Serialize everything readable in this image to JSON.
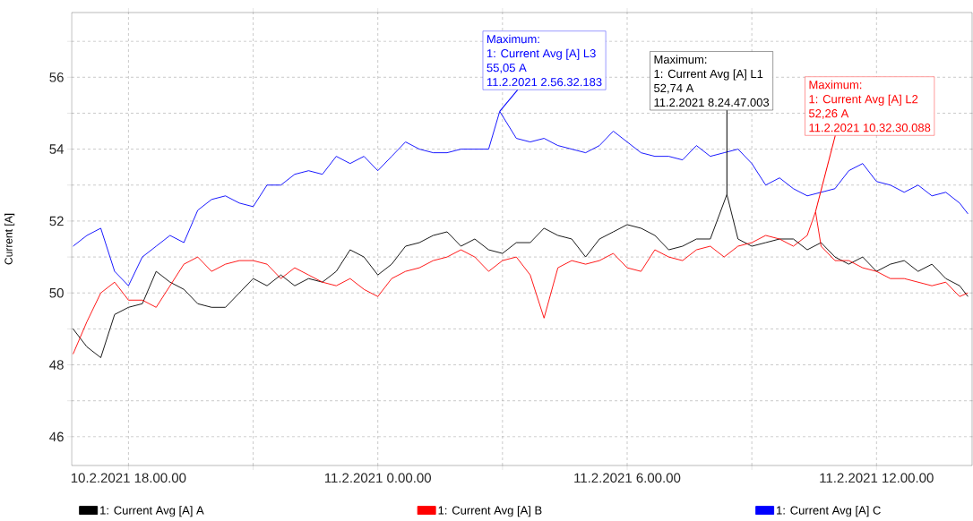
{
  "chart_data": {
    "type": "line",
    "ylabel": "Current [A]",
    "xlim": [
      "2021-02-10T16:38",
      "2021-02-11T14:18"
    ],
    "ylim": [
      45.2,
      57.8
    ],
    "xticks": [
      {
        "value": "2021-02-10T18:00",
        "label": "10.2.2021 18.00.00"
      },
      {
        "value": "2021-02-10T21:00",
        "label": null
      },
      {
        "value": "2021-02-11T00:00",
        "label": "11.2.2021 0.00.00"
      },
      {
        "value": "2021-02-11T03:00",
        "label": null
      },
      {
        "value": "2021-02-11T06:00",
        "label": "11.2.2021 6.00.00"
      },
      {
        "value": "2021-02-11T09:00",
        "label": null
      },
      {
        "value": "2021-02-11T12:00",
        "label": "11.2.2021 12.00.00"
      }
    ],
    "yticks": [
      46,
      {
        "value": 47,
        "label": null
      },
      48,
      {
        "value": 49,
        "label": null
      },
      50,
      {
        "value": 51,
        "label": null
      },
      52,
      {
        "value": 53,
        "label": null
      },
      54,
      {
        "value": 55,
        "label": null
      },
      56,
      {
        "value": 57,
        "label": null
      }
    ],
    "grid": true,
    "legend": "bottom",
    "marker": "none",
    "line_style": "solid",
    "series": [
      {
        "name": "1: Current Avg [A] A",
        "color": "#000000",
        "x": [
          "2021-02-10T16:40",
          "2021-02-10T17:00",
          "2021-02-10T17:20",
          "2021-02-10T17:40",
          "2021-02-10T18:00",
          "2021-02-10T18:20",
          "2021-02-10T18:40",
          "2021-02-10T19:00",
          "2021-02-10T19:20",
          "2021-02-10T19:40",
          "2021-02-10T20:00",
          "2021-02-10T20:20",
          "2021-02-10T20:40",
          "2021-02-10T21:00",
          "2021-02-10T21:20",
          "2021-02-10T21:40",
          "2021-02-10T22:00",
          "2021-02-10T22:20",
          "2021-02-10T22:40",
          "2021-02-10T23:00",
          "2021-02-10T23:20",
          "2021-02-10T23:40",
          "2021-02-11T00:00",
          "2021-02-11T00:20",
          "2021-02-11T00:40",
          "2021-02-11T01:00",
          "2021-02-11T01:20",
          "2021-02-11T01:40",
          "2021-02-11T02:00",
          "2021-02-11T02:20",
          "2021-02-11T02:40",
          "2021-02-11T03:00",
          "2021-02-11T03:20",
          "2021-02-11T03:40",
          "2021-02-11T04:00",
          "2021-02-11T04:20",
          "2021-02-11T04:40",
          "2021-02-11T05:00",
          "2021-02-11T05:20",
          "2021-02-11T05:40",
          "2021-02-11T06:00",
          "2021-02-11T06:20",
          "2021-02-11T06:40",
          "2021-02-11T07:00",
          "2021-02-11T07:20",
          "2021-02-11T07:40",
          "2021-02-11T08:00",
          "2021-02-11T08:24",
          "2021-02-11T08:40",
          "2021-02-11T09:00",
          "2021-02-11T09:20",
          "2021-02-11T09:40",
          "2021-02-11T10:00",
          "2021-02-11T10:20",
          "2021-02-11T10:40",
          "2021-02-11T11:00",
          "2021-02-11T11:20",
          "2021-02-11T11:40",
          "2021-02-11T12:00",
          "2021-02-11T12:20",
          "2021-02-11T12:40",
          "2021-02-11T13:00",
          "2021-02-11T13:20",
          "2021-02-11T13:40",
          "2021-02-11T14:00",
          "2021-02-11T14:12"
        ],
        "values": [
          49.0,
          48.5,
          48.2,
          49.4,
          49.6,
          49.7,
          50.6,
          50.3,
          50.1,
          49.7,
          49.6,
          49.6,
          50.0,
          50.4,
          50.2,
          50.5,
          50.2,
          50.4,
          50.3,
          50.6,
          51.2,
          51.0,
          50.5,
          50.8,
          51.3,
          51.4,
          51.6,
          51.7,
          51.3,
          51.5,
          51.2,
          51.1,
          51.4,
          51.4,
          51.8,
          51.6,
          51.5,
          51.0,
          51.5,
          51.7,
          51.9,
          51.8,
          51.6,
          51.2,
          51.3,
          51.5,
          51.5,
          52.74,
          51.5,
          51.3,
          51.4,
          51.5,
          51.5,
          51.2,
          51.4,
          51.0,
          50.8,
          51.0,
          50.6,
          50.8,
          50.9,
          50.6,
          50.8,
          50.4,
          50.2,
          49.9
        ]
      },
      {
        "name": "1: Current Avg [A] B",
        "color": "#ff0000",
        "x": [
          "2021-02-10T16:40",
          "2021-02-10T17:00",
          "2021-02-10T17:20",
          "2021-02-10T17:40",
          "2021-02-10T18:00",
          "2021-02-10T18:20",
          "2021-02-10T18:40",
          "2021-02-10T19:00",
          "2021-02-10T19:20",
          "2021-02-10T19:40",
          "2021-02-10T20:00",
          "2021-02-10T20:20",
          "2021-02-10T20:40",
          "2021-02-10T21:00",
          "2021-02-10T21:20",
          "2021-02-10T21:40",
          "2021-02-10T22:00",
          "2021-02-10T22:20",
          "2021-02-10T22:40",
          "2021-02-10T23:00",
          "2021-02-10T23:20",
          "2021-02-10T23:40",
          "2021-02-11T00:00",
          "2021-02-11T00:20",
          "2021-02-11T00:40",
          "2021-02-11T01:00",
          "2021-02-11T01:20",
          "2021-02-11T01:40",
          "2021-02-11T02:00",
          "2021-02-11T02:20",
          "2021-02-11T02:40",
          "2021-02-11T03:00",
          "2021-02-11T03:20",
          "2021-02-11T03:40",
          "2021-02-11T04:00",
          "2021-02-11T04:20",
          "2021-02-11T04:40",
          "2021-02-11T05:00",
          "2021-02-11T05:20",
          "2021-02-11T05:40",
          "2021-02-11T06:00",
          "2021-02-11T06:20",
          "2021-02-11T06:40",
          "2021-02-11T07:00",
          "2021-02-11T07:20",
          "2021-02-11T07:40",
          "2021-02-11T08:00",
          "2021-02-11T08:20",
          "2021-02-11T08:40",
          "2021-02-11T09:00",
          "2021-02-11T09:20",
          "2021-02-11T09:40",
          "2021-02-11T10:00",
          "2021-02-11T10:20",
          "2021-02-11T10:32",
          "2021-02-11T10:40",
          "2021-02-11T11:00",
          "2021-02-11T11:20",
          "2021-02-11T11:40",
          "2021-02-11T12:00",
          "2021-02-11T12:20",
          "2021-02-11T12:40",
          "2021-02-11T13:00",
          "2021-02-11T13:20",
          "2021-02-11T13:40",
          "2021-02-11T14:00",
          "2021-02-11T14:12"
        ],
        "values": [
          48.3,
          49.2,
          50.0,
          50.3,
          49.8,
          49.8,
          49.6,
          50.2,
          50.8,
          51.0,
          50.6,
          50.8,
          50.9,
          50.9,
          50.8,
          50.4,
          50.7,
          50.5,
          50.3,
          50.2,
          50.4,
          50.1,
          49.9,
          50.4,
          50.6,
          50.7,
          50.9,
          51.0,
          51.2,
          51.0,
          50.6,
          50.9,
          51.0,
          50.5,
          49.3,
          50.7,
          50.9,
          50.8,
          50.9,
          51.1,
          50.7,
          50.6,
          51.2,
          51.0,
          50.9,
          51.2,
          51.3,
          51.0,
          51.3,
          51.4,
          51.6,
          51.5,
          51.3,
          51.6,
          52.26,
          51.3,
          50.9,
          50.9,
          50.7,
          50.6,
          50.4,
          50.4,
          50.3,
          50.2,
          50.3,
          49.9,
          50.0
        ]
      },
      {
        "name": "1: Current Avg [A] C",
        "color": "#0000ff",
        "x": [
          "2021-02-10T16:40",
          "2021-02-10T17:00",
          "2021-02-10T17:20",
          "2021-02-10T17:40",
          "2021-02-10T18:00",
          "2021-02-10T18:20",
          "2021-02-10T18:40",
          "2021-02-10T19:00",
          "2021-02-10T19:20",
          "2021-02-10T19:40",
          "2021-02-10T20:00",
          "2021-02-10T20:20",
          "2021-02-10T20:40",
          "2021-02-10T21:00",
          "2021-02-10T21:20",
          "2021-02-10T21:40",
          "2021-02-10T22:00",
          "2021-02-10T22:20",
          "2021-02-10T22:40",
          "2021-02-10T23:00",
          "2021-02-10T23:20",
          "2021-02-10T23:40",
          "2021-02-11T00:00",
          "2021-02-11T00:20",
          "2021-02-11T00:40",
          "2021-02-11T01:00",
          "2021-02-11T01:20",
          "2021-02-11T01:40",
          "2021-02-11T02:00",
          "2021-02-11T02:20",
          "2021-02-11T02:40",
          "2021-02-11T02:56",
          "2021-02-11T03:20",
          "2021-02-11T03:40",
          "2021-02-11T04:00",
          "2021-02-11T04:20",
          "2021-02-11T04:40",
          "2021-02-11T05:00",
          "2021-02-11T05:20",
          "2021-02-11T05:40",
          "2021-02-11T06:00",
          "2021-02-11T06:20",
          "2021-02-11T06:40",
          "2021-02-11T07:00",
          "2021-02-11T07:20",
          "2021-02-11T07:40",
          "2021-02-11T08:00",
          "2021-02-11T08:20",
          "2021-02-11T08:40",
          "2021-02-11T09:00",
          "2021-02-11T09:20",
          "2021-02-11T09:40",
          "2021-02-11T10:00",
          "2021-02-11T10:20",
          "2021-02-11T10:40",
          "2021-02-11T11:00",
          "2021-02-11T11:20",
          "2021-02-11T11:40",
          "2021-02-11T12:00",
          "2021-02-11T12:20",
          "2021-02-11T12:40",
          "2021-02-11T13:00",
          "2021-02-11T13:20",
          "2021-02-11T13:40",
          "2021-02-11T14:00",
          "2021-02-11T14:12"
        ],
        "values": [
          51.3,
          51.6,
          51.8,
          50.6,
          50.2,
          51.0,
          51.3,
          51.6,
          51.4,
          52.3,
          52.6,
          52.7,
          52.5,
          52.4,
          53.0,
          53.0,
          53.3,
          53.4,
          53.3,
          53.8,
          53.6,
          53.8,
          53.4,
          53.8,
          54.2,
          54.0,
          53.9,
          53.9,
          54.0,
          54.0,
          54.0,
          55.05,
          54.3,
          54.2,
          54.3,
          54.1,
          54.0,
          53.9,
          54.1,
          54.5,
          54.2,
          53.9,
          53.8,
          53.8,
          53.7,
          54.1,
          53.8,
          53.9,
          54.0,
          53.6,
          53.0,
          53.2,
          52.9,
          52.7,
          52.8,
          52.9,
          53.4,
          53.6,
          53.1,
          53.0,
          52.8,
          53.0,
          52.7,
          52.8,
          52.5,
          52.2
        ]
      }
    ],
    "annotations": [
      "Maximum:",
      "1: Current Avg [A] L3",
      "55,05 A",
      {
        "text": "11.2.2021 2.56.32.183",
        "x": "2021-02-11T02:56",
        "y": 55.05
      },
      "Maximum:",
      "1: Current Avg [A] L1",
      "52,74 A",
      {
        "text": "11.2.2021 8.24.47.003",
        "x": "2021-02-11T08:24",
        "y": 52.74
      },
      "Maximum:",
      "1: Current Avg [A] L2",
      "52,26 A",
      {
        "text": "11.2.2021 10.32.30.088",
        "x": "2021-02-11T10:32",
        "y": 52.26
      }
    ]
  }
}
